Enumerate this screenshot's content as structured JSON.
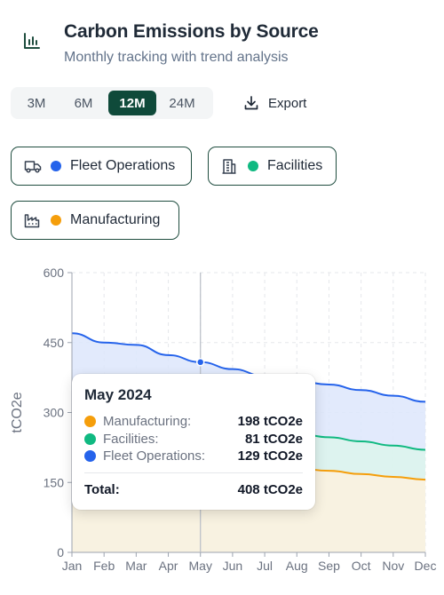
{
  "header": {
    "title": "Carbon Emissions by Source",
    "subtitle": "Monthly tracking with trend analysis",
    "icon": "bar-chart-icon"
  },
  "ranges": {
    "options": [
      "3M",
      "6M",
      "12M",
      "24M"
    ],
    "selected": "12M"
  },
  "export_label": "Export",
  "filters": [
    {
      "label": "Fleet Operations",
      "icon": "truck-icon",
      "color": "#2563eb"
    },
    {
      "label": "Facilities",
      "icon": "building-icon",
      "color": "#10b981"
    },
    {
      "label": "Manufacturing",
      "icon": "factory-icon",
      "color": "#f59e0b"
    }
  ],
  "chart_data": {
    "type": "area",
    "stacked": true,
    "categories": [
      "Jan",
      "Feb",
      "Mar",
      "Apr",
      "May",
      "Jun",
      "Jul",
      "Aug",
      "Sep",
      "Oct",
      "Nov",
      "Dec"
    ],
    "ylabel": "tCO2e",
    "ylim": [
      0,
      600
    ],
    "yticks": [
      0,
      150,
      300,
      450,
      600
    ],
    "grid": true,
    "series": [
      {
        "name": "Manufacturing",
        "color": "#f59e0b",
        "values": [
          225,
          215,
          210,
          203,
          198,
          193,
          186,
          180,
          175,
          168,
          162,
          156
        ]
      },
      {
        "name": "Facilities",
        "color": "#10b981",
        "values": [
          90,
          87,
          86,
          84,
          81,
          80,
          77,
          75,
          72,
          70,
          67,
          64
        ]
      },
      {
        "name": "Fleet Operations",
        "color": "#2563eb",
        "values": [
          155,
          148,
          149,
          136,
          129,
          120,
          115,
          112,
          113,
          110,
          107,
          103
        ]
      }
    ],
    "hover_index": 4
  },
  "tooltip": {
    "title": "May 2024",
    "rows": [
      {
        "name": "Manufacturing:",
        "value": "198 tCO2e",
        "color": "#f59e0b"
      },
      {
        "name": "Facilities:",
        "value": "81 tCO2e",
        "color": "#10b981"
      },
      {
        "name": "Fleet Operations:",
        "value": "129 tCO2e",
        "color": "#2563eb"
      }
    ],
    "total_label": "Total:",
    "total_value": "408 tCO2e"
  }
}
